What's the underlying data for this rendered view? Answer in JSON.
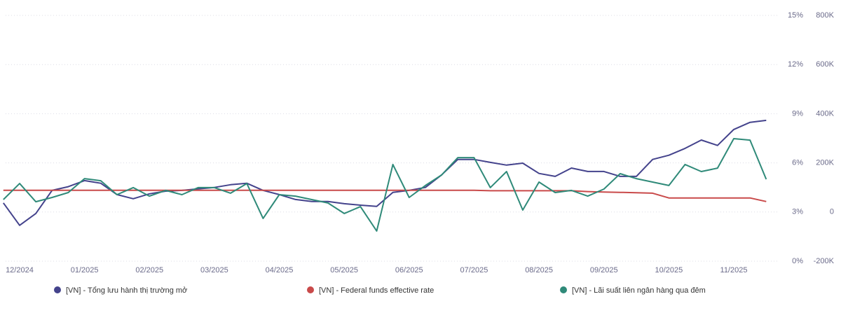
{
  "chart_data": {
    "type": "line",
    "categories": [
      null,
      "12/2024",
      null,
      null,
      null,
      "01/2025",
      null,
      null,
      null,
      "02/2025",
      null,
      null,
      null,
      "03/2025",
      null,
      null,
      null,
      "04/2025",
      null,
      null,
      null,
      "05/2025",
      null,
      null,
      null,
      "06/2025",
      null,
      null,
      null,
      "07/2025",
      null,
      null,
      null,
      "08/2025",
      null,
      null,
      null,
      "09/2025",
      null,
      null,
      null,
      "10/2025",
      null,
      null,
      null,
      "11/2025",
      null,
      null
    ],
    "series": [
      {
        "name": "[VN] - Tổng lưu hành thị trường mở",
        "color": "#44438c",
        "axis": "y2",
        "values": [
          37000,
          -54000,
          -6000,
          88000,
          103000,
          128000,
          117000,
          71000,
          54000,
          74000,
          85000,
          88000,
          94000,
          100000,
          111000,
          117000,
          88000,
          71000,
          51000,
          43000,
          43000,
          34000,
          28000,
          23000,
          80000,
          88000,
          100000,
          151000,
          214000,
          214000,
          202000,
          191000,
          199000,
          157000,
          145000,
          179000,
          165000,
          165000,
          145000,
          145000,
          214000,
          231000,
          259000,
          293000,
          271000,
          336000,
          365000,
          373000
        ]
      },
      {
        "name": "[VN] - Federal funds effective rate",
        "color": "#c94a4a",
        "values": [
          4.33,
          4.33,
          4.33,
          4.33,
          4.33,
          4.33,
          4.33,
          4.33,
          4.33,
          4.33,
          4.33,
          4.33,
          4.33,
          4.33,
          4.33,
          4.33,
          4.33,
          4.33,
          4.33,
          4.33,
          4.33,
          4.33,
          4.33,
          4.33,
          4.33,
          4.33,
          4.33,
          4.33,
          4.33,
          4.33,
          4.3,
          4.3,
          4.3,
          4.3,
          4.3,
          4.3,
          4.25,
          4.22,
          4.2,
          4.18,
          4.15,
          3.86,
          3.86,
          3.86,
          3.86,
          3.86,
          3.86,
          3.64
        ]
      },
      {
        "name": "[VN] - Lãi suất liên ngân hàng qua đêm",
        "color": "#2f8a79",
        "values": [
          3.76,
          4.74,
          3.63,
          3.89,
          4.19,
          5.04,
          4.91,
          4.06,
          4.49,
          3.97,
          4.32,
          4.06,
          4.49,
          4.49,
          4.15,
          4.74,
          2.61,
          4.06,
          3.97,
          3.76,
          3.55,
          2.91,
          3.33,
          1.84,
          5.9,
          3.89,
          4.62,
          5.26,
          6.32,
          6.32,
          4.49,
          5.47,
          3.12,
          4.83,
          4.19,
          4.32,
          3.97,
          4.4,
          5.34,
          5.04,
          4.83,
          4.62,
          5.9,
          5.47,
          5.68,
          7.48,
          7.39,
          5.0
        ]
      }
    ],
    "ylim": [
      0,
      15
    ],
    "yticks": [
      {
        "value": 0,
        "label": "0%"
      },
      {
        "value": 3,
        "label": "3%"
      },
      {
        "value": 6,
        "label": "6%"
      },
      {
        "value": 9,
        "label": "9%"
      },
      {
        "value": 12,
        "label": "12%"
      },
      {
        "value": 15,
        "label": "15%"
      }
    ],
    "y2lim": [
      -200000,
      800000
    ],
    "y2ticks": [
      {
        "value": -200000,
        "label": "-200K"
      },
      {
        "value": 0,
        "label": "0"
      },
      {
        "value": 200000,
        "label": "200K"
      },
      {
        "value": 400000,
        "label": "400K"
      },
      {
        "value": 600000,
        "label": "600K"
      },
      {
        "value": 800000,
        "label": "800K"
      }
    ],
    "grid": true
  }
}
